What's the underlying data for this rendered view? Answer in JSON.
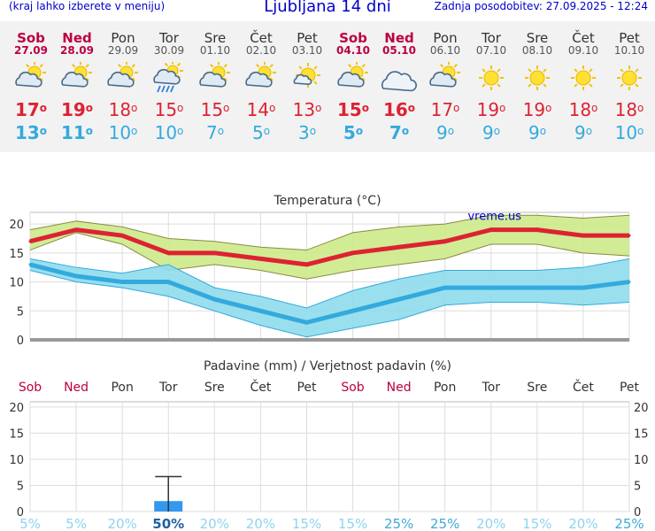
{
  "header": {
    "left_note": "(kraj lahko izberete v meniju)",
    "title": "Ljubljana 14 dni",
    "last_update": "Zadnja posodobitev: 27.09.2025 - 12:24"
  },
  "days": [
    {
      "name": "Sob",
      "date": "27.09",
      "weekend": true,
      "icon": "partly-cloudy-icon",
      "tmax": "17",
      "tmin": "13"
    },
    {
      "name": "Ned",
      "date": "28.09",
      "weekend": true,
      "icon": "partly-cloudy-icon",
      "tmax": "19",
      "tmin": "11"
    },
    {
      "name": "Pon",
      "date": "29.09",
      "weekend": false,
      "icon": "partly-cloudy-icon",
      "tmax": "18",
      "tmin": "10"
    },
    {
      "name": "Tor",
      "date": "30.09",
      "weekend": false,
      "icon": "rain-shower-icon",
      "tmax": "15",
      "tmin": "10"
    },
    {
      "name": "Sre",
      "date": "01.10",
      "weekend": false,
      "icon": "partly-cloudy-icon",
      "tmax": "15",
      "tmin": "7"
    },
    {
      "name": "Čet",
      "date": "02.10",
      "weekend": false,
      "icon": "partly-cloudy-icon",
      "tmax": "14",
      "tmin": "5"
    },
    {
      "name": "Pet",
      "date": "03.10",
      "weekend": false,
      "icon": "mostly-sunny-icon",
      "tmax": "13",
      "tmin": "3"
    },
    {
      "name": "Sob",
      "date": "04.10",
      "weekend": true,
      "icon": "partly-cloudy-icon",
      "tmax": "15",
      "tmin": "5"
    },
    {
      "name": "Ned",
      "date": "05.10",
      "weekend": true,
      "icon": "cloudy-icon",
      "tmax": "16",
      "tmin": "7"
    },
    {
      "name": "Pon",
      "date": "06.10",
      "weekend": false,
      "icon": "partly-cloudy-icon",
      "tmax": "17",
      "tmin": "9"
    },
    {
      "name": "Tor",
      "date": "07.10",
      "weekend": false,
      "icon": "sunny-icon",
      "tmax": "19",
      "tmin": "9"
    },
    {
      "name": "Sre",
      "date": "08.10",
      "weekend": false,
      "icon": "sunny-icon",
      "tmax": "19",
      "tmin": "9"
    },
    {
      "name": "Čet",
      "date": "09.10",
      "weekend": false,
      "icon": "sunny-icon",
      "tmax": "18",
      "tmin": "9"
    },
    {
      "name": "Pet",
      "date": "10.10",
      "weekend": false,
      "icon": "sunny-icon",
      "tmax": "18",
      "tmin": "10"
    }
  ],
  "degree_symbol": "o",
  "colors": {
    "max": "#dd2233",
    "min": "#33aadd",
    "max_band": "#ccea8a",
    "min_band": "#8fdcec",
    "weekend": "#bb0044",
    "precip_bar": "#3399ee"
  },
  "chart_data": [
    {
      "type": "line",
      "title": "Temperatura (°C)",
      "watermark": "vreme.us",
      "ylim": [
        0,
        22
      ],
      "yticks": [
        "0",
        "5",
        "10",
        "15",
        "20"
      ],
      "x": [
        "Sob",
        "Ned",
        "Pon",
        "Tor",
        "Sre",
        "Čet",
        "Pet",
        "Sob",
        "Ned",
        "Pon",
        "Tor",
        "Sre",
        "Čet",
        "Pet"
      ],
      "series": [
        {
          "values": [
            17,
            19,
            18,
            15,
            15,
            14,
            13,
            15,
            16,
            17,
            19,
            19,
            18,
            18
          ]
        },
        {
          "values": [
            13,
            11,
            10,
            10,
            7,
            5,
            3,
            5,
            7,
            9,
            9,
            9,
            9,
            10
          ]
        }
      ],
      "bands": [
        {
          "low": [
            15.5,
            18.5,
            16.5,
            12,
            13,
            12,
            10.5,
            12,
            13,
            14,
            16.5,
            16.5,
            15,
            14.5
          ],
          "high": [
            19,
            20.5,
            19.5,
            17.5,
            17,
            16,
            15.5,
            18.5,
            19.5,
            20,
            21.5,
            21.5,
            21,
            21.5
          ]
        },
        {
          "low": [
            12,
            10,
            9,
            7.5,
            5,
            2.5,
            0.5,
            2,
            3.5,
            6,
            6.5,
            6.5,
            6,
            6.5
          ],
          "high": [
            14,
            12.5,
            11.5,
            13,
            9,
            7.5,
            5.5,
            8.5,
            10.5,
            12,
            12,
            12,
            12.5,
            14
          ]
        }
      ]
    },
    {
      "type": "bar",
      "title": "Padavine (mm) / Verjetnost padavin (%)",
      "ylim": [
        0,
        21
      ],
      "yticks": [
        "0",
        "5",
        "10",
        "15",
        "20"
      ],
      "categories": [
        "Sob",
        "Ned",
        "Pon",
        "Tor",
        "Sre",
        "Čet",
        "Pet",
        "Sob",
        "Ned",
        "Pon",
        "Tor",
        "Sre",
        "Čet",
        "Pet"
      ],
      "values": [
        0,
        0,
        0,
        2,
        0,
        0,
        0,
        0,
        0,
        0,
        0,
        0,
        0,
        0
      ],
      "error_high": [
        null,
        null,
        null,
        6.7,
        null,
        null,
        null,
        null,
        null,
        null,
        null,
        null,
        null,
        null
      ],
      "probability": [
        "5%",
        "5%",
        "20%",
        "50%",
        "20%",
        "20%",
        "15%",
        "15%",
        "25%",
        "25%",
        "20%",
        "15%",
        "20%",
        "25%"
      ]
    }
  ]
}
